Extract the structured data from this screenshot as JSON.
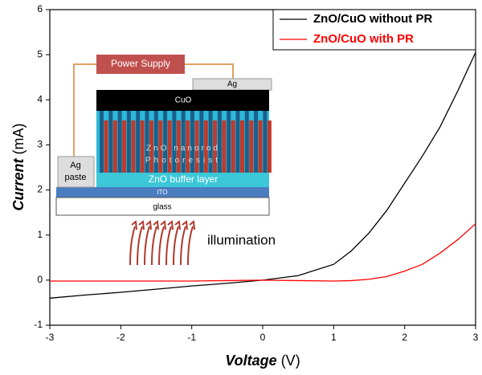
{
  "chart_data": {
    "type": "line",
    "xlabel": "Voltage",
    "xlabel_unit": "(V)",
    "ylabel": "Current",
    "ylabel_unit": "(mA)",
    "x": [
      -3,
      -2.5,
      -2,
      -1.5,
      -1,
      -0.5,
      0,
      0.5,
      1,
      1.25,
      1.5,
      1.75,
      2,
      2.25,
      2.5,
      2.75,
      3
    ],
    "series": [
      {
        "name": "ZnO/CuO without PR",
        "color": "#000000",
        "values": [
          -0.4,
          -0.33,
          -0.27,
          -0.2,
          -0.13,
          -0.07,
          0,
          0.1,
          0.35,
          0.65,
          1.05,
          1.55,
          2.15,
          2.75,
          3.4,
          4.2,
          5.05
        ]
      },
      {
        "name": "ZnO/CuO with PR",
        "color": "#ff0000",
        "values": [
          -0.02,
          -0.02,
          -0.02,
          -0.02,
          -0.02,
          -0.01,
          0,
          -0.01,
          -0.02,
          -0.01,
          0.02,
          0.08,
          0.2,
          0.35,
          0.6,
          0.9,
          1.25
        ]
      }
    ],
    "xlim": [
      -3,
      3
    ],
    "xticks": [
      -3,
      -2,
      -1,
      0,
      1,
      2,
      3
    ],
    "ylim": [
      -1,
      6
    ],
    "yticks": [
      -1,
      0,
      1,
      2,
      3,
      4,
      5,
      6
    ],
    "legend": "upper right",
    "annotations": [
      "Power Supply",
      "Ag",
      "CuO",
      "ZnO nanorod",
      "Photoresist",
      "ZnO buffer layer",
      "ITO",
      "glass",
      "Ag",
      "paste",
      "illumination"
    ]
  }
}
